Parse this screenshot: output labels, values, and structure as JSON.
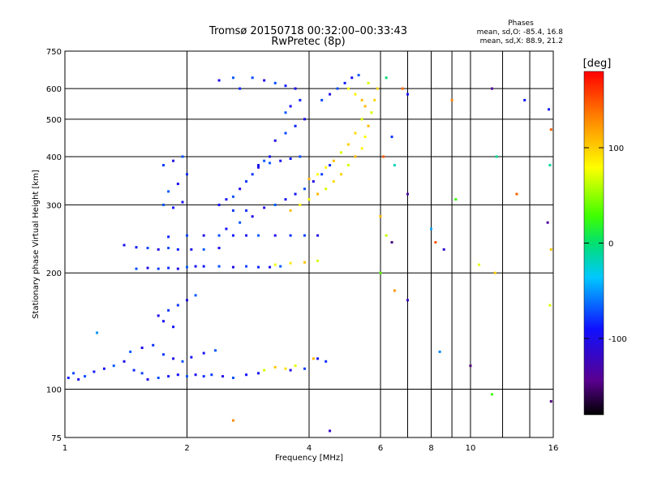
{
  "header": {
    "title_line1": "Tromsø 20150718 00:32:00–00:33:43",
    "title_line2": "RwPretec (8p)",
    "stats_title": "Phases",
    "stats_o": "mean, sd,O: -85.4, 16.8",
    "stats_x": "mean, sd,X:  88.9, 21.2"
  },
  "colorbar": {
    "unit_label": "[deg]",
    "range": [
      -180,
      180
    ],
    "ticks": [
      100,
      0,
      -100
    ],
    "tick_labels": [
      "100",
      "0",
      "-100"
    ]
  },
  "chart_data": {
    "type": "scatter",
    "title": "Tromsø 20150718 00:32:00–00:33:43",
    "subtitle": "RwPretec (8p)",
    "xlabel": "Frequency [MHz]",
    "ylabel": "Stationary phase Virtual Height [km]",
    "x_scale": "log",
    "y_scale": "log",
    "xlim": [
      1,
      16
    ],
    "ylim": [
      75,
      750
    ],
    "grid": true,
    "x_ticks": [
      1,
      2,
      4,
      6,
      8,
      10,
      16
    ],
    "x_tick_labels": [
      "1",
      "2",
      "4",
      "6",
      "8",
      "10",
      "16"
    ],
    "x_grid": [
      2,
      4,
      6,
      7,
      8,
      9,
      10,
      12,
      14,
      16
    ],
    "y_ticks": [
      75,
      100,
      200,
      300,
      400,
      500,
      600,
      750
    ],
    "y_tick_labels": [
      "75",
      "100",
      "200",
      "300",
      "400",
      "500",
      "600",
      "750"
    ],
    "color_encoding": "phase [deg]",
    "series": [
      {
        "name": "O",
        "phase_mean": -85.4,
        "phase_sd": 16.8,
        "points": [
          [
            1.02,
            107
          ],
          [
            1.05,
            110
          ],
          [
            1.08,
            106
          ],
          [
            1.12,
            108
          ],
          [
            1.18,
            111
          ],
          [
            1.25,
            113
          ],
          [
            1.32,
            115
          ],
          [
            1.4,
            118
          ],
          [
            1.48,
            112
          ],
          [
            1.55,
            110
          ],
          [
            1.6,
            106
          ],
          [
            1.7,
            107
          ],
          [
            1.8,
            108
          ],
          [
            1.9,
            109
          ],
          [
            2.0,
            108
          ],
          [
            2.1,
            109
          ],
          [
            2.2,
            108
          ],
          [
            2.3,
            109
          ],
          [
            2.45,
            108
          ],
          [
            2.6,
            107
          ],
          [
            2.8,
            109
          ],
          [
            3.0,
            110
          ],
          [
            1.45,
            125
          ],
          [
            1.55,
            128
          ],
          [
            1.65,
            130
          ],
          [
            1.75,
            123
          ],
          [
            1.85,
            120
          ],
          [
            1.95,
            118
          ],
          [
            2.05,
            121
          ],
          [
            2.2,
            124
          ],
          [
            2.35,
            126
          ],
          [
            1.7,
            155
          ],
          [
            1.8,
            160
          ],
          [
            1.9,
            165
          ],
          [
            2.0,
            170
          ],
          [
            2.1,
            175
          ],
          [
            1.75,
            150
          ],
          [
            1.85,
            145
          ],
          [
            1.5,
            205
          ],
          [
            1.6,
            206
          ],
          [
            1.7,
            205
          ],
          [
            1.8,
            206
          ],
          [
            1.9,
            205
          ],
          [
            2.0,
            207
          ],
          [
            2.1,
            208
          ],
          [
            2.2,
            208
          ],
          [
            2.4,
            208
          ],
          [
            2.6,
            207
          ],
          [
            2.8,
            208
          ],
          [
            3.0,
            207
          ],
          [
            3.2,
            207
          ],
          [
            3.4,
            208
          ],
          [
            1.4,
            236
          ],
          [
            1.5,
            233
          ],
          [
            1.6,
            232
          ],
          [
            1.7,
            230
          ],
          [
            1.8,
            232
          ],
          [
            1.9,
            230
          ],
          [
            2.05,
            230
          ],
          [
            2.2,
            230
          ],
          [
            2.4,
            232
          ],
          [
            1.8,
            248
          ],
          [
            2.0,
            250
          ],
          [
            2.2,
            250
          ],
          [
            2.4,
            250
          ],
          [
            2.6,
            250
          ],
          [
            2.8,
            250
          ],
          [
            3.0,
            250
          ],
          [
            3.3,
            250
          ],
          [
            3.6,
            250
          ],
          [
            3.9,
            250
          ],
          [
            4.2,
            250
          ],
          [
            1.75,
            300
          ],
          [
            1.85,
            295
          ],
          [
            1.95,
            305
          ],
          [
            1.8,
            325
          ],
          [
            1.9,
            340
          ],
          [
            2.0,
            360
          ],
          [
            1.75,
            380
          ],
          [
            1.85,
            390
          ],
          [
            1.95,
            400
          ],
          [
            2.4,
            300
          ],
          [
            2.5,
            310
          ],
          [
            2.6,
            315
          ],
          [
            2.7,
            330
          ],
          [
            2.8,
            345
          ],
          [
            2.9,
            360
          ],
          [
            3.0,
            375
          ],
          [
            3.1,
            390
          ],
          [
            3.2,
            400
          ],
          [
            2.5,
            260
          ],
          [
            2.7,
            270
          ],
          [
            2.9,
            280
          ],
          [
            2.6,
            290
          ],
          [
            2.8,
            290
          ],
          [
            3.1,
            295
          ],
          [
            3.3,
            300
          ],
          [
            3.5,
            310
          ],
          [
            3.7,
            320
          ],
          [
            3.9,
            330
          ],
          [
            4.1,
            345
          ],
          [
            4.3,
            360
          ],
          [
            4.5,
            380
          ],
          [
            3.0,
            380
          ],
          [
            3.2,
            385
          ],
          [
            3.4,
            390
          ],
          [
            3.6,
            395
          ],
          [
            3.8,
            400
          ],
          [
            3.3,
            440
          ],
          [
            3.5,
            460
          ],
          [
            3.7,
            480
          ],
          [
            3.9,
            500
          ],
          [
            3.5,
            520
          ],
          [
            3.6,
            540
          ],
          [
            3.8,
            560
          ],
          [
            2.9,
            640
          ],
          [
            3.1,
            630
          ],
          [
            3.3,
            620
          ],
          [
            3.5,
            610
          ],
          [
            3.7,
            600
          ],
          [
            2.6,
            640
          ],
          [
            2.4,
            630
          ],
          [
            2.7,
            600
          ],
          [
            4.3,
            560
          ],
          [
            4.5,
            580
          ],
          [
            4.7,
            600
          ],
          [
            4.9,
            620
          ],
          [
            5.1,
            640
          ],
          [
            5.3,
            650
          ],
          [
            4.2,
            120
          ],
          [
            4.4,
            118
          ],
          [
            3.9,
            113
          ],
          [
            3.6,
            112
          ]
        ]
      },
      {
        "name": "X",
        "phase_mean": 88.9,
        "phase_sd": 21.2,
        "points": [
          [
            3.6,
            290
          ],
          [
            3.8,
            300
          ],
          [
            4.0,
            310
          ],
          [
            4.2,
            320
          ],
          [
            4.4,
            330
          ],
          [
            4.6,
            345
          ],
          [
            4.8,
            360
          ],
          [
            5.0,
            380
          ],
          [
            5.2,
            400
          ],
          [
            5.4,
            420
          ],
          [
            5.5,
            450
          ],
          [
            5.6,
            480
          ],
          [
            5.7,
            520
          ],
          [
            5.8,
            560
          ],
          [
            5.9,
            600
          ],
          [
            5.6,
            620
          ],
          [
            4.0,
            350
          ],
          [
            4.2,
            360
          ],
          [
            4.4,
            375
          ],
          [
            4.6,
            390
          ],
          [
            4.8,
            410
          ],
          [
            5.0,
            430
          ],
          [
            5.2,
            460
          ],
          [
            5.4,
            500
          ],
          [
            5.5,
            540
          ],
          [
            5.0,
            600
          ],
          [
            5.2,
            580
          ],
          [
            5.4,
            560
          ],
          [
            3.1,
            112
          ],
          [
            3.3,
            114
          ],
          [
            3.5,
            113
          ],
          [
            3.7,
            115
          ],
          [
            4.1,
            120
          ],
          [
            3.3,
            210
          ],
          [
            3.6,
            212
          ],
          [
            3.9,
            213
          ],
          [
            4.2,
            215
          ]
        ]
      },
      {
        "name": "scattered",
        "phase_mean": null,
        "phase_sd": null,
        "points": [
          [
            6.2,
            640
          ],
          [
            6.8,
            600
          ],
          [
            7.0,
            580
          ],
          [
            6.4,
            450
          ],
          [
            6.1,
            400
          ],
          [
            6.5,
            380
          ],
          [
            7.0,
            320
          ],
          [
            6.0,
            280
          ],
          [
            6.2,
            250
          ],
          [
            6.4,
            240
          ],
          [
            6.0,
            200
          ],
          [
            6.5,
            180
          ],
          [
            7.0,
            170
          ],
          [
            8.0,
            260
          ],
          [
            8.2,
            240
          ],
          [
            8.4,
            125
          ],
          [
            8.6,
            230
          ],
          [
            9.0,
            560
          ],
          [
            9.2,
            310
          ],
          [
            10.0,
            115
          ],
          [
            10.5,
            210
          ],
          [
            11.5,
            200
          ],
          [
            11.3,
            600
          ],
          [
            11.6,
            400
          ],
          [
            13.0,
            320
          ],
          [
            13.6,
            560
          ],
          [
            15.6,
            530
          ],
          [
            15.8,
            470
          ],
          [
            15.7,
            380
          ],
          [
            15.5,
            270
          ],
          [
            15.8,
            230
          ],
          [
            15.7,
            165
          ],
          [
            15.8,
            93
          ],
          [
            11.3,
            97
          ],
          [
            2.6,
            83
          ],
          [
            4.5,
            78
          ],
          [
            1.2,
            140
          ]
        ]
      }
    ]
  }
}
